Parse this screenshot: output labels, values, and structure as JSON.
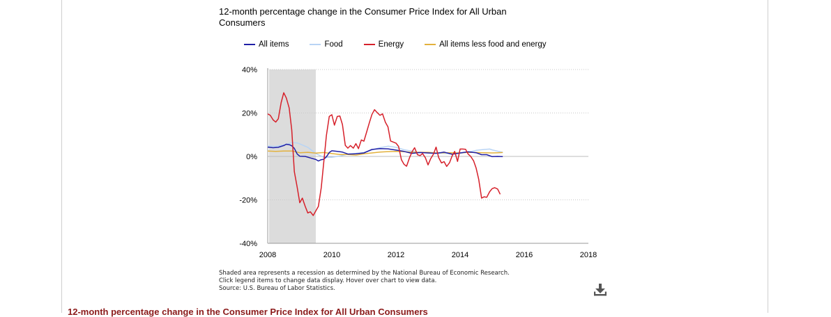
{
  "title": "12-month percentage change in the Consumer Price Index for All Urban Consumers",
  "notes": [
    "Shaded area represents a recession as determined by the National Bureau of Economic Research.",
    "Click legend items to change data display. Hover over chart to view data.",
    "Source: U.S. Bureau of Labor Statistics."
  ],
  "section_heading": "12-month percentage change in the Consumer Price Index for All Urban Consumers",
  "download_icon": "download-icon",
  "legend": [
    {
      "label": "All items",
      "color": "#1f1fa6"
    },
    {
      "label": "Food",
      "color": "#b8d4f5"
    },
    {
      "label": "Energy",
      "color": "#d6202a"
    },
    {
      "label": "All items less food and energy",
      "color": "#e3b13c"
    }
  ],
  "chart_data": {
    "type": "line",
    "title": "12-month percentage change in the Consumer Price Index for All Urban Consumers",
    "xlabel": "",
    "ylabel": "",
    "xlim": [
      2008,
      2018
    ],
    "ylim": [
      -40,
      40
    ],
    "x_ticks": [
      "2008",
      "2010",
      "2012",
      "2014",
      "2016",
      "2018"
    ],
    "y_ticks": [
      "40%",
      "20%",
      "0%",
      "-20%",
      "-40%"
    ],
    "grid": "horizontal dotted",
    "legend_position": "top",
    "recession_shading": [
      2008.0,
      2009.5
    ],
    "series": [
      {
        "name": "All items",
        "color": "#1f1fa6",
        "points": [
          [
            2008.0,
            4.3
          ],
          [
            2008.17,
            4.0
          ],
          [
            2008.33,
            4.2
          ],
          [
            2008.5,
            5.0
          ],
          [
            2008.58,
            5.6
          ],
          [
            2008.67,
            5.4
          ],
          [
            2008.75,
            4.9
          ],
          [
            2008.83,
            3.7
          ],
          [
            2008.92,
            1.1
          ],
          [
            2009.0,
            0.1
          ],
          [
            2009.17,
            0.0
          ],
          [
            2009.33,
            -0.7
          ],
          [
            2009.5,
            -1.4
          ],
          [
            2009.58,
            -2.1
          ],
          [
            2009.67,
            -1.5
          ],
          [
            2009.75,
            -1.3
          ],
          [
            2009.83,
            -0.2
          ],
          [
            2009.92,
            1.8
          ],
          [
            2010.0,
            2.6
          ],
          [
            2010.17,
            2.3
          ],
          [
            2010.33,
            2.0
          ],
          [
            2010.5,
            1.1
          ],
          [
            2010.75,
            1.2
          ],
          [
            2011.0,
            1.6
          ],
          [
            2011.25,
            3.2
          ],
          [
            2011.5,
            3.6
          ],
          [
            2011.75,
            3.5
          ],
          [
            2012.0,
            2.9
          ],
          [
            2012.25,
            2.3
          ],
          [
            2012.5,
            1.4
          ],
          [
            2012.75,
            1.8
          ],
          [
            2013.0,
            1.6
          ],
          [
            2013.25,
            1.4
          ],
          [
            2013.5,
            2.0
          ],
          [
            2013.75,
            1.0
          ],
          [
            2014.0,
            1.6
          ],
          [
            2014.25,
            2.1
          ],
          [
            2014.5,
            1.7
          ],
          [
            2014.67,
            0.8
          ],
          [
            2014.83,
            0.8
          ],
          [
            2015.0,
            -0.1
          ],
          [
            2015.17,
            0.0
          ],
          [
            2015.33,
            -0.1
          ]
        ]
      },
      {
        "name": "Food",
        "color": "#b8d4f5",
        "points": [
          [
            2008.0,
            4.8
          ],
          [
            2008.25,
            4.6
          ],
          [
            2008.5,
            5.3
          ],
          [
            2008.75,
            6.3
          ],
          [
            2008.92,
            6.2
          ],
          [
            2009.0,
            5.8
          ],
          [
            2009.25,
            4.2
          ],
          [
            2009.5,
            1.3
          ],
          [
            2009.75,
            -0.4
          ],
          [
            2010.0,
            -0.4
          ],
          [
            2010.25,
            0.2
          ],
          [
            2010.5,
            1.0
          ],
          [
            2010.75,
            1.4
          ],
          [
            2011.0,
            1.8
          ],
          [
            2011.25,
            3.0
          ],
          [
            2011.5,
            4.0
          ],
          [
            2011.75,
            4.7
          ],
          [
            2012.0,
            4.2
          ],
          [
            2012.25,
            3.1
          ],
          [
            2012.5,
            2.4
          ],
          [
            2012.75,
            1.8
          ],
          [
            2013.0,
            1.6
          ],
          [
            2013.25,
            1.5
          ],
          [
            2013.5,
            1.4
          ],
          [
            2013.75,
            1.2
          ],
          [
            2014.0,
            1.4
          ],
          [
            2014.25,
            2.0
          ],
          [
            2014.5,
            2.8
          ],
          [
            2014.75,
            3.2
          ],
          [
            2014.92,
            3.4
          ],
          [
            2015.0,
            3.0
          ],
          [
            2015.17,
            2.4
          ],
          [
            2015.33,
            1.9
          ]
        ]
      },
      {
        "name": "Energy",
        "color": "#d6202a",
        "points": [
          [
            2008.0,
            19.6
          ],
          [
            2008.08,
            18.9
          ],
          [
            2008.17,
            16.8
          ],
          [
            2008.25,
            15.8
          ],
          [
            2008.33,
            17.3
          ],
          [
            2008.42,
            24.8
          ],
          [
            2008.5,
            29.3
          ],
          [
            2008.58,
            26.9
          ],
          [
            2008.67,
            22.3
          ],
          [
            2008.75,
            12.2
          ],
          [
            2008.83,
            -7.0
          ],
          [
            2008.92,
            -14.2
          ],
          [
            2009.0,
            -21.3
          ],
          [
            2009.08,
            -19.2
          ],
          [
            2009.17,
            -23.0
          ],
          [
            2009.25,
            -26.0
          ],
          [
            2009.33,
            -25.5
          ],
          [
            2009.42,
            -27.2
          ],
          [
            2009.5,
            -25.1
          ],
          [
            2009.58,
            -23.0
          ],
          [
            2009.67,
            -14.4
          ],
          [
            2009.75,
            -2.4
          ],
          [
            2009.83,
            9.7
          ],
          [
            2009.92,
            18.4
          ],
          [
            2010.0,
            19.2
          ],
          [
            2010.08,
            14.4
          ],
          [
            2010.17,
            18.4
          ],
          [
            2010.25,
            18.6
          ],
          [
            2010.33,
            14.7
          ],
          [
            2010.42,
            5.1
          ],
          [
            2010.5,
            3.8
          ],
          [
            2010.58,
            5.0
          ],
          [
            2010.67,
            3.8
          ],
          [
            2010.75,
            5.9
          ],
          [
            2010.83,
            3.6
          ],
          [
            2010.92,
            7.6
          ],
          [
            2011.0,
            7.0
          ],
          [
            2011.08,
            11.0
          ],
          [
            2011.17,
            15.5
          ],
          [
            2011.25,
            19.3
          ],
          [
            2011.33,
            21.5
          ],
          [
            2011.42,
            20.1
          ],
          [
            2011.5,
            18.9
          ],
          [
            2011.58,
            19.6
          ],
          [
            2011.67,
            15.7
          ],
          [
            2011.75,
            13.6
          ],
          [
            2011.83,
            7.1
          ],
          [
            2011.92,
            6.6
          ],
          [
            2012.0,
            6.1
          ],
          [
            2012.08,
            4.6
          ],
          [
            2012.17,
            -1.5
          ],
          [
            2012.25,
            -3.6
          ],
          [
            2012.33,
            -4.5
          ],
          [
            2012.42,
            -0.7
          ],
          [
            2012.5,
            2.1
          ],
          [
            2012.58,
            4.0
          ],
          [
            2012.67,
            0.8
          ],
          [
            2012.75,
            0.4
          ],
          [
            2012.83,
            1.3
          ],
          [
            2012.92,
            -0.7
          ],
          [
            2013.0,
            -3.9
          ],
          [
            2013.08,
            -1.1
          ],
          [
            2013.17,
            1.1
          ],
          [
            2013.25,
            4.3
          ],
          [
            2013.33,
            -0.5
          ],
          [
            2013.42,
            -3.0
          ],
          [
            2013.5,
            -2.4
          ],
          [
            2013.58,
            -4.6
          ],
          [
            2013.67,
            -2.9
          ],
          [
            2013.75,
            0.2
          ],
          [
            2013.83,
            2.3
          ],
          [
            2013.92,
            -2.3
          ],
          [
            2014.0,
            3.4
          ],
          [
            2014.08,
            3.4
          ],
          [
            2014.17,
            3.3
          ],
          [
            2014.25,
            1.1
          ],
          [
            2014.33,
            0.0
          ],
          [
            2014.42,
            -2.0
          ],
          [
            2014.5,
            -5.4
          ],
          [
            2014.58,
            -10.6
          ],
          [
            2014.67,
            -19.2
          ],
          [
            2014.75,
            -18.6
          ],
          [
            2014.83,
            -18.8
          ],
          [
            2014.92,
            -16.3
          ],
          [
            2015.0,
            -14.8
          ],
          [
            2015.08,
            -14.4
          ],
          [
            2015.17,
            -15.0
          ],
          [
            2015.25,
            -17.4
          ]
        ]
      },
      {
        "name": "All items less food and energy",
        "color": "#e3b13c",
        "points": [
          [
            2008.0,
            2.5
          ],
          [
            2008.25,
            2.3
          ],
          [
            2008.5,
            2.5
          ],
          [
            2008.75,
            2.5
          ],
          [
            2009.0,
            1.7
          ],
          [
            2009.25,
            1.9
          ],
          [
            2009.5,
            1.5
          ],
          [
            2009.75,
            1.8
          ],
          [
            2010.0,
            1.3
          ],
          [
            2010.25,
            0.9
          ],
          [
            2010.5,
            0.9
          ],
          [
            2010.75,
            0.6
          ],
          [
            2011.0,
            1.2
          ],
          [
            2011.25,
            1.6
          ],
          [
            2011.5,
            2.0
          ],
          [
            2011.75,
            2.2
          ],
          [
            2012.0,
            2.3
          ],
          [
            2012.25,
            2.2
          ],
          [
            2012.5,
            1.9
          ],
          [
            2012.75,
            1.9
          ],
          [
            2013.0,
            1.9
          ],
          [
            2013.25,
            1.6
          ],
          [
            2013.5,
            1.7
          ],
          [
            2013.75,
            1.7
          ],
          [
            2014.0,
            1.6
          ],
          [
            2014.25,
            1.9
          ],
          [
            2014.5,
            1.8
          ],
          [
            2014.75,
            1.7
          ],
          [
            2015.0,
            1.6
          ],
          [
            2015.17,
            1.7
          ],
          [
            2015.33,
            1.8
          ]
        ]
      }
    ]
  }
}
